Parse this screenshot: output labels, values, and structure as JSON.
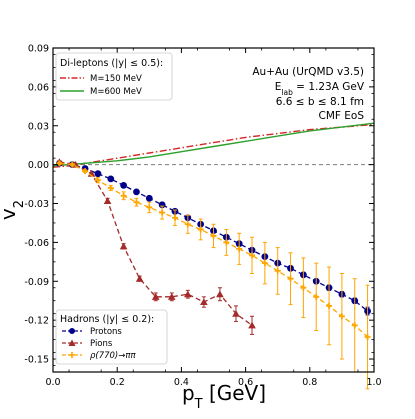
{
  "chart_data": {
    "type": "line",
    "title": "",
    "xlabel": "p",
    "xlabel_sub": "T",
    "xlabel_unit": " [GeV]",
    "ylabel": "v",
    "ylabel_sub": "2",
    "xlim": [
      0.0,
      1.0
    ],
    "ylim": [
      -0.16,
      0.09
    ],
    "grid": false,
    "x_ticks": [
      0.0,
      0.2,
      0.4,
      0.6,
      0.8,
      1.0
    ],
    "x_tick_labels": [
      "0.0",
      "0.2",
      "0.4",
      "0.6",
      "0.8",
      "1.0"
    ],
    "y_ticks": [
      0.09,
      0.06,
      0.03,
      0.0,
      -0.03,
      -0.06,
      -0.09,
      -0.12,
      -0.15
    ],
    "y_tick_labels": [
      "0.09",
      "0.06",
      "0.03",
      "0.00",
      "-0.03",
      "-0.06",
      "-0.09",
      "-0.12",
      "-0.15"
    ],
    "reference_line": {
      "y": 0.0,
      "style": "dashed",
      "color": "#7f7f7f"
    },
    "annotation": {
      "line1": "Au+Au (UrQMD v3.5)",
      "line2_main": "E",
      "line2_sub": "lab",
      "line2_rest": " = 1.23A GeV",
      "line3": "6.6 ≤ b ≤ 8.1 fm",
      "line4": "CMF EoS"
    },
    "legend_dileptons": {
      "title": "Di-leptons (|y| ≤ 0.5):",
      "placement": "top-left",
      "entries": [
        "M=150 MeV",
        "M=600 MeV"
      ]
    },
    "legend_hadrons": {
      "title": "Hadrons (|y| ≤ 0.2):",
      "placement": "bottom-left",
      "entries": [
        "Protons",
        "Pions",
        "ρ(770)→ππ"
      ]
    },
    "series": [
      {
        "name": "M=150 MeV",
        "color": "#d62728",
        "style": "dashdot",
        "x": [
          0.0,
          0.05,
          0.1,
          0.2,
          0.3,
          0.4,
          0.5,
          0.6,
          0.7,
          0.8,
          0.9,
          1.0
        ],
        "y": [
          -0.002,
          -0.001,
          0.001,
          0.005,
          0.009,
          0.013,
          0.017,
          0.021,
          0.024,
          0.027,
          0.029,
          0.031
        ]
      },
      {
        "name": "M=600 MeV",
        "color": "#2ca02c",
        "style": "solid",
        "x": [
          0.0,
          0.05,
          0.1,
          0.2,
          0.3,
          0.4,
          0.5,
          0.6,
          0.7,
          0.8,
          0.9,
          1.0
        ],
        "y": [
          -0.001,
          0.0,
          0.001,
          0.003,
          0.006,
          0.01,
          0.014,
          0.018,
          0.022,
          0.026,
          0.029,
          0.032
        ]
      },
      {
        "name": "Protons",
        "color": "#00008b",
        "marker": "circle",
        "x": [
          0.02,
          0.06,
          0.1,
          0.14,
          0.18,
          0.22,
          0.26,
          0.3,
          0.34,
          0.38,
          0.42,
          0.46,
          0.5,
          0.54,
          0.58,
          0.62,
          0.66,
          0.7,
          0.74,
          0.78,
          0.82,
          0.86,
          0.9,
          0.94,
          0.98
        ],
        "y": [
          0.001,
          0.0,
          -0.003,
          -0.007,
          -0.011,
          -0.016,
          -0.021,
          -0.026,
          -0.031,
          -0.036,
          -0.041,
          -0.046,
          -0.051,
          -0.056,
          -0.061,
          -0.066,
          -0.071,
          -0.076,
          -0.08,
          -0.085,
          -0.09,
          -0.095,
          -0.1,
          -0.105,
          -0.113
        ],
        "err": [
          0.001,
          0.001,
          0.001,
          0.001,
          0.001,
          0.001,
          0.001,
          0.001,
          0.001,
          0.001,
          0.001,
          0.001,
          0.001,
          0.001,
          0.001,
          0.001,
          0.001,
          0.001,
          0.001,
          0.001,
          0.001,
          0.002,
          0.002,
          0.002,
          0.003
        ]
      },
      {
        "name": "Pions",
        "color": "#a52a2a",
        "marker": "triangle",
        "x": [
          0.02,
          0.07,
          0.12,
          0.17,
          0.22,
          0.27,
          0.32,
          0.37,
          0.42,
          0.47,
          0.52,
          0.57,
          0.62
        ],
        "y": [
          0.002,
          0.0,
          -0.007,
          -0.028,
          -0.063,
          -0.088,
          -0.102,
          -0.102,
          -0.1,
          -0.106,
          -0.1,
          -0.115,
          -0.124
        ],
        "err": [
          0.001,
          0.001,
          0.001,
          0.002,
          0.002,
          0.002,
          0.003,
          0.003,
          0.003,
          0.004,
          0.005,
          0.006,
          0.007
        ]
      },
      {
        "name": "ρ(770)→ππ",
        "color": "#ffa500",
        "marker": "plus",
        "x": [
          0.02,
          0.06,
          0.1,
          0.14,
          0.18,
          0.22,
          0.26,
          0.3,
          0.34,
          0.38,
          0.42,
          0.46,
          0.5,
          0.54,
          0.58,
          0.62,
          0.66,
          0.7,
          0.74,
          0.78,
          0.82,
          0.86,
          0.9,
          0.94,
          0.98
        ],
        "y": [
          0.001,
          0.0,
          -0.005,
          -0.012,
          -0.018,
          -0.024,
          -0.029,
          -0.033,
          -0.037,
          -0.041,
          -0.046,
          -0.05,
          -0.055,
          -0.06,
          -0.065,
          -0.07,
          -0.076,
          -0.082,
          -0.088,
          -0.095,
          -0.102,
          -0.109,
          -0.117,
          -0.124,
          -0.133
        ],
        "err": [
          0.001,
          0.001,
          0.001,
          0.002,
          0.002,
          0.003,
          0.003,
          0.004,
          0.005,
          0.006,
          0.007,
          0.008,
          0.009,
          0.01,
          0.012,
          0.014,
          0.016,
          0.018,
          0.02,
          0.023,
          0.026,
          0.03,
          0.033,
          0.036,
          0.04
        ]
      }
    ]
  }
}
